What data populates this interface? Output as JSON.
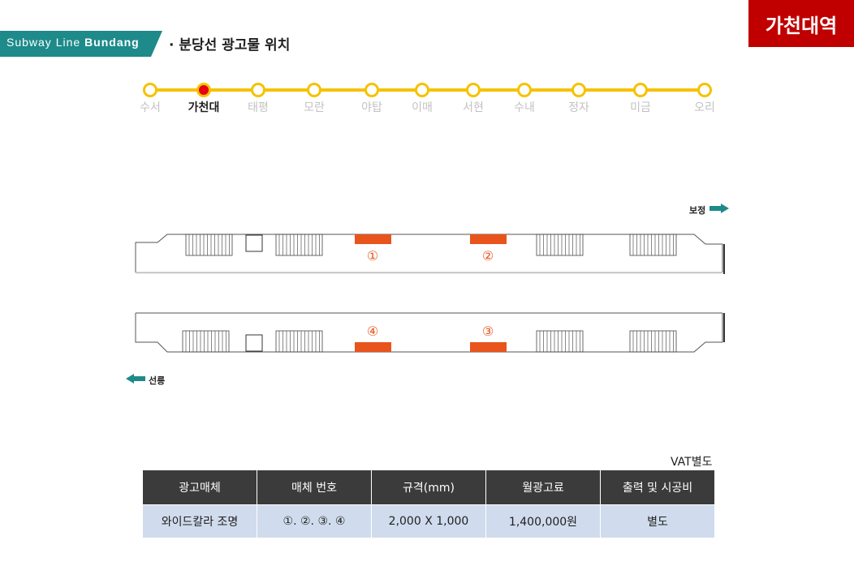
{
  "header": {
    "tag_prefix": "Subway Line",
    "tag_bold": "Bundang",
    "subtitle": "· 분당선 광고물 위치",
    "badge": "가천대역",
    "tag_color": "#1e8a8a",
    "badge_color": "#c00000"
  },
  "line": {
    "color": "#f5c200",
    "current_color": "#e60012",
    "current_index": 1,
    "stations": [
      "수서",
      "가천대",
      "태평",
      "모란",
      "야탑",
      "이매",
      "서현",
      "수내",
      "정자",
      "미금",
      "오리"
    ]
  },
  "platform": {
    "direction_top": "보정",
    "direction_bottom": "선릉",
    "arrow_color": "#1e8a8a",
    "ad_color": "#e8541c",
    "ad_numbers": [
      "①",
      "②",
      "④",
      "③"
    ]
  },
  "table": {
    "note": "VAT별도",
    "headers": [
      "광고매체",
      "매체 번호",
      "규격(mm)",
      "월광고료",
      "출력 및 시공비"
    ],
    "rows": [
      [
        "와이드칼라 조명",
        "①. ②. ③. ④",
        "2,000 X 1,000",
        "1,400,000원",
        "별도"
      ]
    ]
  }
}
